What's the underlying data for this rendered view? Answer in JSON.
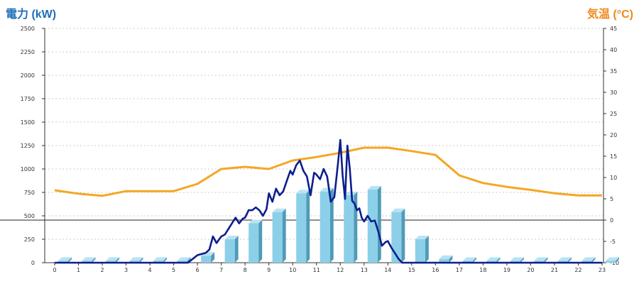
{
  "left_title": "電力 (kW)",
  "right_title": "気温 (°C)",
  "colors": {
    "left_title": "#1e6fb8",
    "right_title": "#ee8a1e",
    "bar_front": "#8ccfe8",
    "bar_side": "#4f9bb8",
    "bar_top": "#b8e3f2",
    "power_line": "#0d1e8c",
    "temp_line": "#f5a623",
    "grid": "#bbbbbb"
  },
  "chart_data": {
    "type": "bar",
    "categories": [
      "0",
      "1",
      "2",
      "3",
      "4",
      "5",
      "6",
      "7",
      "8",
      "9",
      "10",
      "11",
      "12",
      "13",
      "14",
      "15",
      "16",
      "17",
      "18",
      "19",
      "20",
      "21",
      "22",
      "23"
    ],
    "y_left": {
      "label": "電力 (kW)",
      "range": [
        0,
        2500
      ],
      "ticks": [
        0,
        250,
        500,
        750,
        1000,
        1250,
        1500,
        1750,
        2000,
        2250,
        2500
      ]
    },
    "y_right": {
      "label": "気温 (°C)",
      "range": [
        -10,
        45
      ],
      "ticks": [
        -10,
        -5,
        0,
        5,
        10,
        15,
        20,
        25,
        30,
        35,
        40,
        45
      ]
    },
    "grid": "dashed horizontal",
    "series": [
      {
        "type": "bar3d",
        "axis": "left",
        "values": [
          20,
          20,
          20,
          20,
          20,
          20,
          75,
          250,
          420,
          540,
          740,
          760,
          720,
          780,
          540,
          250,
          40,
          20,
          20,
          20,
          20,
          20,
          20,
          20
        ]
      },
      {
        "type": "line",
        "axis": "left",
        "x": [
          0,
          1,
          2,
          3,
          4,
          5,
          5.6,
          5.8,
          6,
          6.2,
          6.35,
          6.5,
          6.65,
          6.8,
          7,
          7.15,
          7.3,
          7.45,
          7.6,
          7.75,
          7.9,
          8,
          8.15,
          8.3,
          8.45,
          8.6,
          8.75,
          8.9,
          9,
          9.15,
          9.3,
          9.45,
          9.6,
          9.75,
          9.9,
          10,
          10.15,
          10.3,
          10.45,
          10.6,
          10.75,
          10.9,
          11,
          11.15,
          11.3,
          11.45,
          11.6,
          11.75,
          11.9,
          12,
          12.1,
          12.2,
          12.3,
          12.4,
          12.5,
          12.6,
          12.7,
          12.8,
          12.9,
          13,
          13.15,
          13.3,
          13.45,
          13.6,
          13.75,
          13.9,
          14,
          14.15,
          14.3,
          14.45,
          14.6,
          14.75,
          14.9,
          15,
          15.15,
          15.3,
          15.45,
          15.6,
          15.75,
          15.9,
          16,
          17,
          18,
          19,
          20,
          21,
          22,
          23
        ],
        "values": [
          0,
          0,
          0,
          0,
          0,
          0,
          0,
          40,
          80,
          95,
          105,
          140,
          280,
          210,
          280,
          300,
          360,
          420,
          480,
          420,
          470,
          480,
          560,
          560,
          590,
          560,
          500,
          570,
          740,
          650,
          790,
          720,
          760,
          870,
          980,
          940,
          1040,
          1090,
          980,
          920,
          720,
          960,
          940,
          890,
          1000,
          920,
          650,
          700,
          1050,
          1310,
          930,
          680,
          1250,
          1000,
          660,
          630,
          560,
          580,
          480,
          440,
          500,
          440,
          450,
          330,
          180,
          220,
          230,
          160,
          100,
          40,
          0,
          0,
          0,
          0,
          0,
          0,
          0,
          0,
          0,
          0,
          0,
          0,
          0,
          0,
          0,
          0,
          0,
          0
        ],
        "note": ""
      },
      {
        "type": "line",
        "axis": "right",
        "x": [
          0,
          1,
          2,
          3,
          4,
          5,
          6,
          7,
          8,
          9,
          10,
          11,
          12,
          13,
          14,
          15,
          16,
          17,
          18,
          19,
          20,
          21,
          22,
          23
        ],
        "values": [
          7,
          6.2,
          5.7,
          6.8,
          6.8,
          6.8,
          8.5,
          12,
          12.5,
          12,
          14,
          14.8,
          15.8,
          17,
          17,
          16.2,
          15.3,
          10.5,
          8.7,
          7.8,
          7.1,
          6.3,
          5.8,
          5.8
        ]
      }
    ]
  }
}
